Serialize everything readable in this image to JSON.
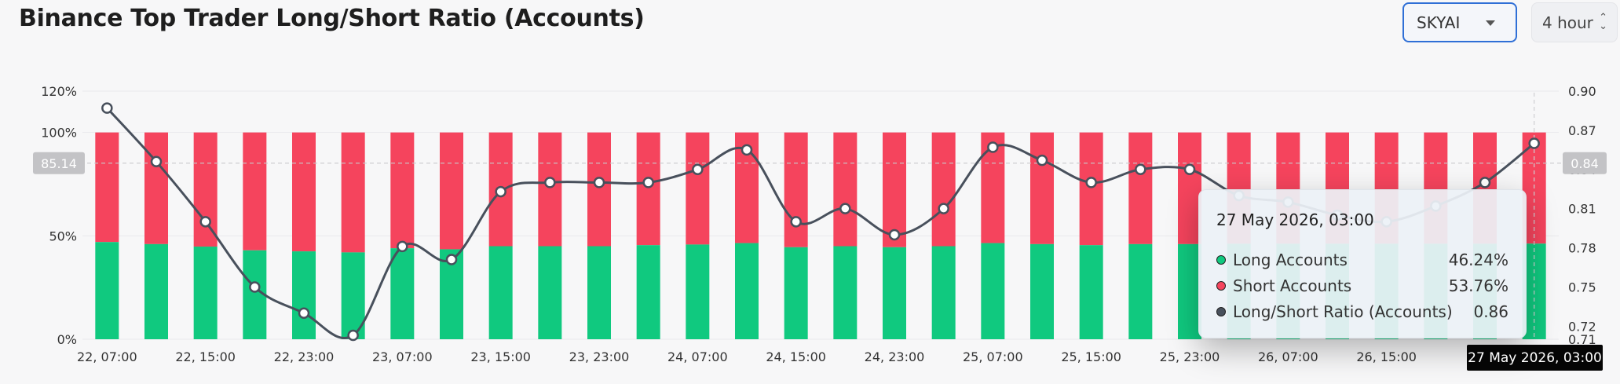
{
  "header": {
    "title": "Binance Top Trader Long/Short Ratio (Accounts)",
    "symbol_value": "SKYAI",
    "interval_value": "4 hour"
  },
  "colors": {
    "long": "#10c97f",
    "short": "#f5445d",
    "ratio_line": "#48505c",
    "background": "#f7f7f8"
  },
  "chart_data": {
    "type": "bar",
    "stacked": true,
    "title": "Binance Top Trader Long/Short Ratio (Accounts)",
    "x_ticks": [
      "22, 07:00",
      "22, 15:00",
      "22, 23:00",
      "23, 07:00",
      "23, 15:00",
      "23, 23:00",
      "24, 07:00",
      "24, 15:00",
      "24, 23:00",
      "25, 07:00",
      "25, 15:00",
      "25, 23:00",
      "26, 07:00",
      "26, 15:00"
    ],
    "left_axis": {
      "ticks": [
        "0%",
        "50%",
        "100%",
        "120%"
      ],
      "range": [
        0,
        120
      ],
      "unit": "%"
    },
    "right_axis": {
      "ticks": [
        "0.71",
        "0.72",
        "0.75",
        "0.78",
        "0.81",
        "0.84",
        "0.87",
        "0.90"
      ],
      "range": [
        0.71,
        0.9
      ]
    },
    "series": [
      {
        "name": "Long Accounts",
        "axis": "left",
        "values": [
          47.0,
          46.0,
          44.8,
          43.0,
          42.5,
          42.0,
          44.0,
          43.5,
          45.0,
          45.0,
          45.0,
          45.5,
          45.8,
          46.5,
          44.5,
          45.0,
          44.5,
          45.0,
          46.5,
          46.0,
          45.5,
          46.0,
          46.0,
          46.2,
          46.2,
          46.2,
          46.2,
          46.2,
          46.2,
          46.24
        ]
      },
      {
        "name": "Short Accounts",
        "axis": "left",
        "values": [
          53.0,
          54.0,
          55.2,
          57.0,
          57.5,
          58.0,
          56.0,
          56.5,
          55.0,
          55.0,
          55.0,
          54.5,
          54.2,
          53.5,
          55.5,
          55.0,
          55.5,
          55.0,
          53.5,
          54.0,
          54.5,
          54.0,
          54.0,
          53.8,
          53.8,
          53.8,
          53.8,
          53.8,
          53.8,
          53.76
        ]
      },
      {
        "name": "Long/Short Ratio (Accounts)",
        "axis": "right",
        "type": "line",
        "values": [
          0.887,
          0.846,
          0.8,
          0.75,
          0.73,
          0.713,
          0.781,
          0.771,
          0.823,
          0.83,
          0.83,
          0.83,
          0.84,
          0.855,
          0.8,
          0.81,
          0.79,
          0.81,
          0.857,
          0.847,
          0.83,
          0.84,
          0.84,
          0.82,
          0.815,
          0.805,
          0.8,
          0.812,
          0.83,
          0.86
        ]
      }
    ],
    "reference_line": {
      "axis": "left",
      "value": 85.14,
      "label": "85.14"
    },
    "right_reference_label": "0.84",
    "grid": true
  },
  "tooltip": {
    "title": "27 May 2026, 03:00",
    "rows": [
      {
        "label": "Long Accounts",
        "value": "46.24%",
        "color": "#10c97f"
      },
      {
        "label": "Short Accounts",
        "value": "53.76%",
        "color": "#f5445d"
      },
      {
        "label": "Long/Short Ratio (Accounts)",
        "value": "0.86",
        "color": "#48505c"
      }
    ],
    "x_hover_label": "27 May 2026, 03:00"
  }
}
